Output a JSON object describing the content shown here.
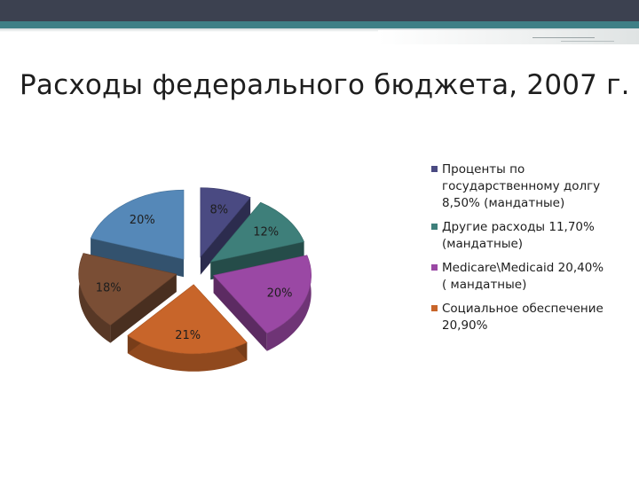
{
  "slide": {
    "title": "Расходы федерального бюджета, 2007 г."
  },
  "chart_data": {
    "type": "pie",
    "title": "Расходы федерального бюджета, 2007 г.",
    "slices": [
      {
        "label": "Проценты по государственному долгу 8,50% (мандатные)",
        "value": 8.5,
        "data_label": "8%",
        "color": "#4a4a82"
      },
      {
        "label": "Другие расходы 11,70% (мандатные)",
        "value": 11.7,
        "data_label": "12%",
        "color": "#3e7f7a"
      },
      {
        "label": "Medicare\\Medicaid 20,40% ( мандатные)",
        "value": 20.4,
        "data_label": "20%",
        "color": "#9a48a4"
      },
      {
        "label": "Социальное обеспечение 20,90%",
        "value": 20.9,
        "data_label": "21%",
        "color": "#c8652a"
      },
      {
        "label": "",
        "value": 18.0,
        "data_label": "18%",
        "color": "#7a4e35"
      },
      {
        "label": "",
        "value": 20.0,
        "data_label": "20%",
        "color": "#5588b8"
      }
    ],
    "legend_position": "right",
    "exploded": true,
    "three_d": true
  }
}
